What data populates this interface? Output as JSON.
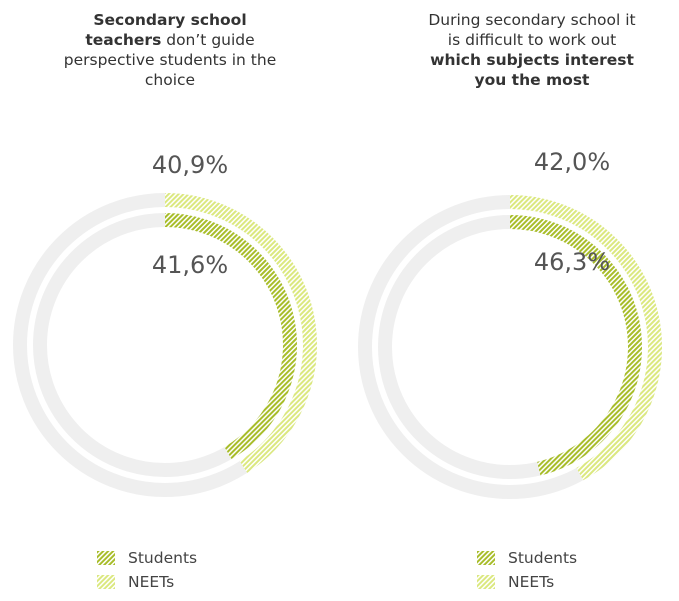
{
  "colors": {
    "track": "#efefef",
    "students": "#a8bd2a",
    "neets": "#dbe87f"
  },
  "chart_data": [
    {
      "type": "pie",
      "title_parts": [
        {
          "text": "Secondary school teachers",
          "bold": true
        },
        {
          "text": " don’t guide perspective students in the choice",
          "bold": false
        }
      ],
      "series": [
        {
          "name": "NEETs",
          "value_label": "40,9%",
          "value": 40.9
        },
        {
          "name": "Students",
          "value_label": "41,6%",
          "value": 41.6
        }
      ],
      "legend": [
        "Students",
        "NEETs"
      ]
    },
    {
      "type": "pie",
      "title_parts": [
        {
          "text": "During secondary school it is difficult to work out ",
          "bold": false
        },
        {
          "text": "which subjects interest you the most",
          "bold": true
        }
      ],
      "series": [
        {
          "name": "NEETs",
          "value_label": "42,0%",
          "value": 42.0
        },
        {
          "name": "Students",
          "value_label": "46,3%",
          "value": 46.3
        }
      ],
      "legend": [
        "Students",
        "NEETs"
      ]
    }
  ]
}
